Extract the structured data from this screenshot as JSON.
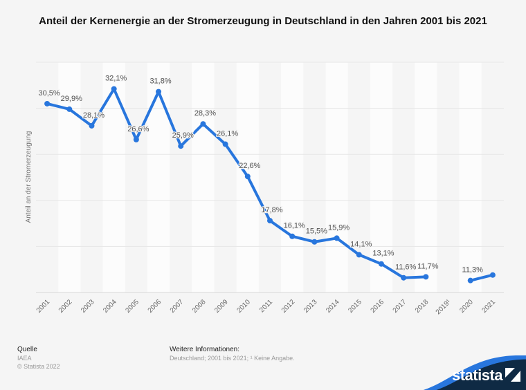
{
  "title": "Anteil der Kernenergie an der Stromerzeugung in Deutschland in den Jahren 2001 bis 2021",
  "chart_data": {
    "type": "line",
    "title": "Anteil der Kernenergie an der Stromerzeugung in Deutschland in den Jahren 2001 bis 2021",
    "ylabel": "Anteil an der Stromerzeugung",
    "xlabel": "",
    "categories": [
      "2001",
      "2002",
      "2003",
      "2004",
      "2005",
      "2006",
      "2007",
      "2008",
      "2009",
      "2010",
      "2011",
      "2012",
      "2013",
      "2014",
      "2015",
      "2016",
      "2017",
      "2018",
      "2019¹",
      "2020",
      "2021"
    ],
    "series": [
      {
        "values": [
          30.5,
          29.9,
          28.1,
          32.1,
          26.6,
          31.8,
          25.9,
          28.3,
          26.1,
          22.6,
          17.8,
          16.1,
          15.5,
          15.9,
          14.1,
          13.1,
          11.6,
          11.7,
          null,
          11.3,
          11.9
        ],
        "data_labels": [
          "30,5%",
          "29,9%",
          "28,1%",
          "32,1%",
          "26,6%",
          "31,8%",
          "25,9%",
          "28,3%",
          "26,1%",
          "22,6%",
          "17,8%",
          "16,1%",
          "15,5%",
          "15,9%",
          "14,1%",
          "13,1%",
          "11,6%",
          "11,7%",
          "",
          "11,3%",
          ""
        ]
      }
    ],
    "ylim": [
      10,
      35
    ],
    "yticks_shown": false,
    "grid": true,
    "legend": "none",
    "line_color": "#2876dd"
  },
  "footer": {
    "source_heading": "Quelle",
    "source": "IAEA",
    "copyright": "© Statista 2022",
    "info_heading": "Weitere Informationen:",
    "info": "Deutschland; 2001 bis 2021; ¹ Keine Angabe."
  },
  "logo": {
    "text": "statista"
  }
}
